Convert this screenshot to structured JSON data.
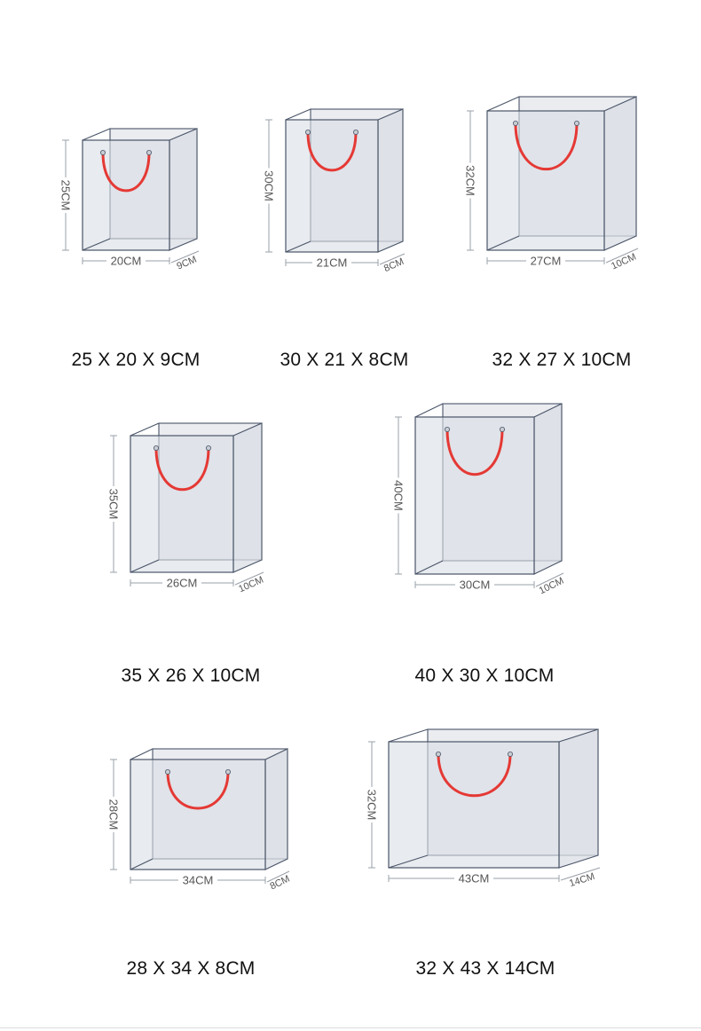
{
  "colors": {
    "bag_fill": "#d9dde4",
    "bag_edge": "#4a5568",
    "handle": "#e53935",
    "dimension_text": "#555555",
    "dimension_line": "#9aa0a8",
    "caption_text": "#111111"
  },
  "bags": [
    {
      "height_label": "25CM",
      "width_label": "20CM",
      "depth_label": "9CM",
      "caption": "25 X 20 X 9CM"
    },
    {
      "height_label": "30CM",
      "width_label": "21CM",
      "depth_label": "8CM",
      "caption": "30 X 21 X 8CM"
    },
    {
      "height_label": "32CM",
      "width_label": "27CM",
      "depth_label": "10CM",
      "caption": "32 X 27 X 10CM"
    },
    {
      "height_label": "35CM",
      "width_label": "26CM",
      "depth_label": "10CM",
      "caption": "35 X 26 X 10CM"
    },
    {
      "height_label": "40CM",
      "width_label": "30CM",
      "depth_label": "10CM",
      "caption": "40 X 30 X 10CM"
    },
    {
      "height_label": "28CM",
      "width_label": "34CM",
      "depth_label": "8CM",
      "caption": "28 X 34 X 8CM"
    },
    {
      "height_label": "32CM",
      "width_label": "43CM",
      "depth_label": "14CM",
      "caption": "32 X 43 X 14CM"
    }
  ]
}
